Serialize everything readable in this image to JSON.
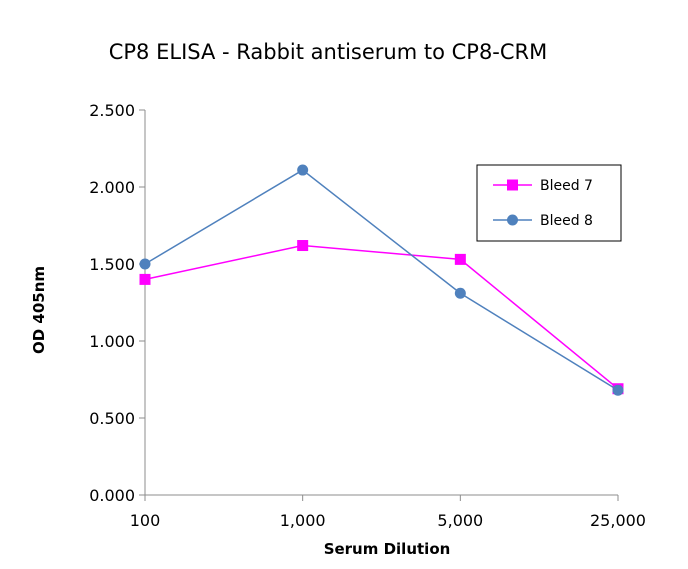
{
  "chart_data": {
    "type": "line",
    "title": "CP8 ELISA - Rabbit antiserum to CP8-CRM",
    "xlabel": "Serum Dilution",
    "ylabel": "OD 405nm",
    "categories": [
      "100",
      "1,000",
      "5,000",
      "25,000"
    ],
    "ylim": [
      0,
      2.5
    ],
    "yticks": [
      "0.000",
      "0.500",
      "1.000",
      "1.500",
      "2.000",
      "2.500"
    ],
    "grid": false,
    "legend_position": "top-right",
    "series": [
      {
        "name": "Bleed 7",
        "values": [
          1.4,
          1.62,
          1.53,
          0.69
        ],
        "color": "#ff00ff",
        "marker": "square"
      },
      {
        "name": "Bleed 8",
        "values": [
          1.5,
          2.11,
          1.31,
          0.68
        ],
        "color": "#4f81bd",
        "marker": "circle"
      }
    ]
  }
}
